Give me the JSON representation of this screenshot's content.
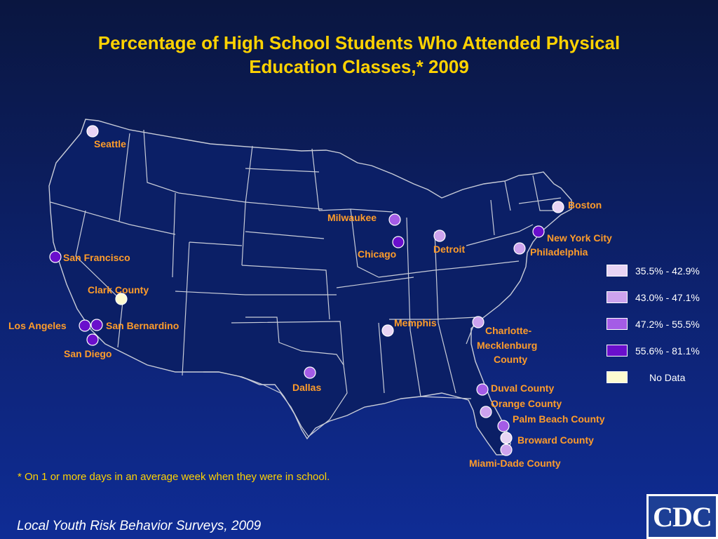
{
  "title": {
    "line1": "Percentage of High School Students Who Attended Physical",
    "line2": "Education Classes,* 2009"
  },
  "colors": {
    "background_top": "#0a1640",
    "background_bottom": "#0f2c95",
    "title": "#ffd200",
    "city_label": "#ff9c2a",
    "state_border": "#c8ccd8"
  },
  "legend": [
    {
      "label": "35.5% - 42.9%",
      "color": "#e8d4f4"
    },
    {
      "label": "43.0% - 47.1%",
      "color": "#cda3ee"
    },
    {
      "label": "47.2% - 55.5%",
      "color": "#a45ce6"
    },
    {
      "label": "55.6% - 81.1%",
      "color": "#6a0fcc"
    },
    {
      "label": "No Data",
      "color": "#fdfbd0"
    }
  ],
  "cities": [
    {
      "name": "Seattle",
      "category": 0
    },
    {
      "name": "San Francisco",
      "category": 3
    },
    {
      "name": "Clark County",
      "category": 4
    },
    {
      "name": "Los Angeles",
      "category": 3
    },
    {
      "name": "San Bernardino",
      "category": 3
    },
    {
      "name": "San Diego",
      "category": 3
    },
    {
      "name": "Dallas",
      "category": 2
    },
    {
      "name": "Milwaukee",
      "category": 2
    },
    {
      "name": "Chicago",
      "category": 3
    },
    {
      "name": "Detroit",
      "category": 1
    },
    {
      "name": "Memphis",
      "category": 0
    },
    {
      "name": "Boston",
      "category": 0
    },
    {
      "name": "New York City",
      "category": 3
    },
    {
      "name": "Philadelphia",
      "category": 1
    },
    {
      "name": "Charlotte-",
      "category": 1
    },
    {
      "name": "Mecklenburg",
      "category": 1
    },
    {
      "name": "County",
      "category": 1
    },
    {
      "name": "Duval County",
      "category": 2
    },
    {
      "name": "Orange County",
      "category": 1
    },
    {
      "name": "Palm Beach County",
      "category": 2
    },
    {
      "name": "Broward County",
      "category": 0
    },
    {
      "name": "Miami-Dade County",
      "category": 1
    }
  ],
  "footnote": "* On 1 or more days in an average week when they were in school.",
  "source": "Local Youth Risk Behavior Surveys, 2009",
  "logo_text": "CDC"
}
